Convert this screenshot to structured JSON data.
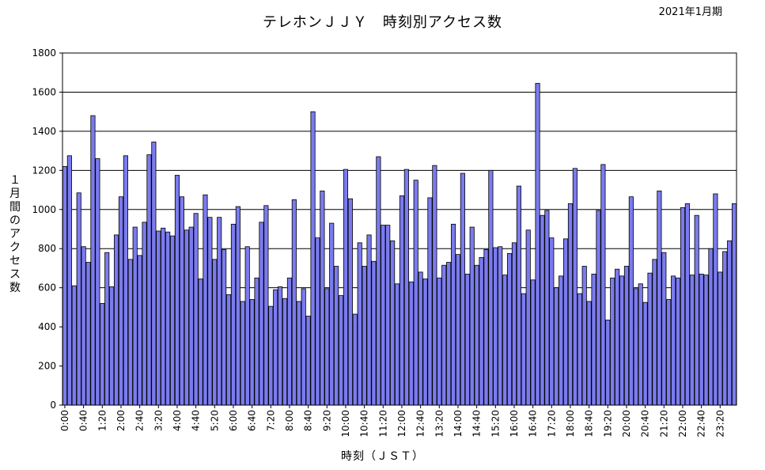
{
  "header": {
    "title": "テレホンＪＪＹ　時刻別アクセス数",
    "period": "2021年1月期"
  },
  "axes": {
    "ylabel": "１月間のアクセス数",
    "xlabel": "時刻（ＪＳＴ）"
  },
  "colors": {
    "bar_fill": "#7b7bef",
    "bar_stroke": "#000000",
    "grid": "#000000"
  },
  "chart_data": {
    "type": "bar",
    "title": "テレホンＪＪＹ　時刻別アクセス数",
    "xlabel": "時刻（ＪＳＴ）",
    "ylabel": "１月間のアクセス数",
    "ylim": [
      0,
      1800
    ],
    "yticks": [
      0,
      200,
      400,
      600,
      800,
      1000,
      1200,
      1400,
      1600,
      1800
    ],
    "grid": true,
    "legend": "none",
    "xtick_labels": [
      "0:00",
      "0:40",
      "1:20",
      "2:00",
      "2:40",
      "3:20",
      "4:00",
      "4:40",
      "5:20",
      "6:00",
      "6:40",
      "7:20",
      "8:00",
      "8:40",
      "9:20",
      "10:00",
      "10:40",
      "11:20",
      "12:00",
      "12:40",
      "13:20",
      "14:00",
      "14:40",
      "15:20",
      "16:00",
      "16:40",
      "17:20",
      "18:00",
      "18:40",
      "19:20",
      "20:00",
      "20:40",
      "21:20",
      "22:00",
      "22:40",
      "23:20"
    ],
    "interval_minutes": 10,
    "values": [
      1220,
      1275,
      610,
      1085,
      810,
      730,
      1480,
      1260,
      520,
      780,
      605,
      870,
      1065,
      1275,
      745,
      910,
      765,
      935,
      1280,
      1345,
      890,
      905,
      885,
      865,
      1175,
      1065,
      895,
      910,
      980,
      645,
      1075,
      960,
      745,
      960,
      795,
      565,
      925,
      1015,
      530,
      810,
      540,
      650,
      935,
      1020,
      505,
      590,
      605,
      545,
      650,
      1050,
      530,
      595,
      455,
      1500,
      855,
      1095,
      595,
      930,
      710,
      560,
      1205,
      1055,
      465,
      830,
      710,
      870,
      735,
      1270,
      920,
      920,
      840,
      620,
      1070,
      1205,
      630,
      1150,
      680,
      645,
      1060,
      1225,
      650,
      715,
      730,
      925,
      770,
      1185,
      670,
      910,
      715,
      755,
      795,
      1200,
      805,
      810,
      665,
      775,
      830,
      1120,
      570,
      895,
      640,
      1645,
      970,
      995,
      855,
      600,
      660,
      850,
      1030,
      1210,
      570,
      710,
      530,
      670,
      995,
      1230,
      435,
      650,
      695,
      660,
      710,
      1065,
      595,
      620,
      525,
      675,
      745,
      1095,
      780,
      540,
      660,
      650,
      1010,
      1030,
      665,
      970,
      670,
      665,
      800,
      1080,
      680,
      785,
      840,
      1030
    ]
  }
}
